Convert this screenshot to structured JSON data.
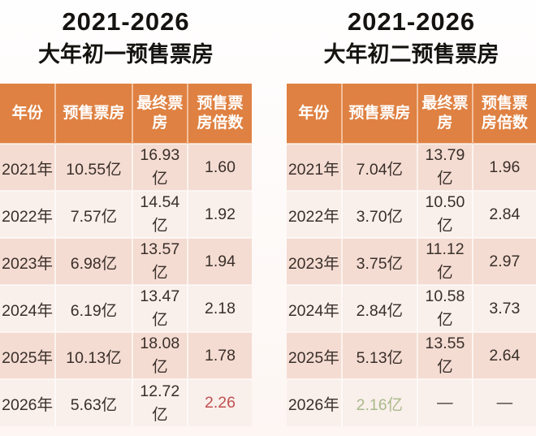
{
  "colors": {
    "header_bg": "#df8142",
    "row_dark": "#f4dcd2",
    "row_light": "#f9efeb",
    "body_text": "#3a2f2a",
    "title_text": "#151310",
    "highlight_red": "#c05050",
    "highlight_green": "#a9ba8b"
  },
  "left_table": {
    "title_range": "2021-2026",
    "title_name": "大年初一预售票房"
  },
  "right_table": {
    "title_range": "2021-2026",
    "title_name": "大年初二预售票房"
  },
  "chart_data": [
    {
      "type": "table",
      "title": "2021-2026 大年初一预售票房",
      "columns": [
        "年份",
        "预售票房",
        "最终票房",
        "预售票房倍数"
      ],
      "rows": [
        [
          {
            "text": "2021年"
          },
          {
            "text": "10.55亿"
          },
          {
            "text": "16.93亿"
          },
          {
            "text": "1.60"
          }
        ],
        [
          {
            "text": "2022年"
          },
          {
            "text": "7.57亿"
          },
          {
            "text": "14.54亿"
          },
          {
            "text": "1.92"
          }
        ],
        [
          {
            "text": "2023年"
          },
          {
            "text": "6.98亿"
          },
          {
            "text": "13.57亿"
          },
          {
            "text": "1.94"
          }
        ],
        [
          {
            "text": "2024年"
          },
          {
            "text": "6.19亿"
          },
          {
            "text": "13.47亿"
          },
          {
            "text": "2.18"
          }
        ],
        [
          {
            "text": "2025年"
          },
          {
            "text": "10.13亿"
          },
          {
            "text": "18.08亿"
          },
          {
            "text": "1.78"
          }
        ],
        [
          {
            "text": "2026年"
          },
          {
            "text": "5.63亿"
          },
          {
            "text": "12.72亿"
          },
          {
            "text": "2.26",
            "highlight": "red"
          }
        ]
      ]
    },
    {
      "type": "table",
      "title": "2021-2026 大年初二预售票房",
      "columns": [
        "年份",
        "预售票房",
        "最终票房",
        "预售票房倍数"
      ],
      "rows": [
        [
          {
            "text": "2021年"
          },
          {
            "text": "7.04亿"
          },
          {
            "text": "13.79亿"
          },
          {
            "text": "1.96"
          }
        ],
        [
          {
            "text": "2022年"
          },
          {
            "text": "3.70亿"
          },
          {
            "text": "10.50亿"
          },
          {
            "text": "2.84"
          }
        ],
        [
          {
            "text": "2023年"
          },
          {
            "text": "3.75亿"
          },
          {
            "text": "11.12亿"
          },
          {
            "text": "2.97"
          }
        ],
        [
          {
            "text": "2024年"
          },
          {
            "text": "2.84亿"
          },
          {
            "text": "10.58亿"
          },
          {
            "text": "3.73"
          }
        ],
        [
          {
            "text": "2025年"
          },
          {
            "text": "5.13亿"
          },
          {
            "text": "13.55亿"
          },
          {
            "text": "2.64"
          }
        ],
        [
          {
            "text": "2026年"
          },
          {
            "text": "2.16亿",
            "highlight": "green"
          },
          {
            "text": "—"
          },
          {
            "text": "—"
          }
        ]
      ]
    }
  ]
}
